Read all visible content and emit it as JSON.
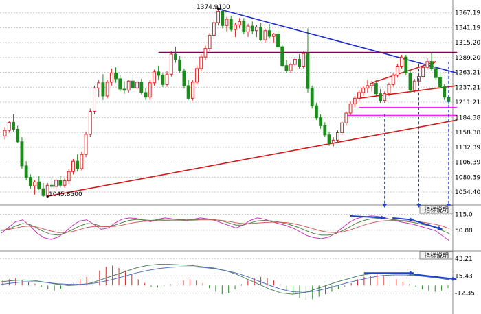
{
  "chart_data": {
    "type": "candlestick",
    "main_panel": {
      "y_axis_labels": [
        "1367.1950",
        "1341.1990",
        "1315.2028",
        "1289.2068",
        "1263.2107",
        "1237.2147",
        "1211.2186",
        "1184.3835",
        "1158.3874",
        "1132.3914",
        "1106.3953",
        "1080.3993",
        "1054.4032"
      ],
      "ylim": [
        1040,
        1380
      ],
      "annotations": [
        {
          "label": "1374.9100",
          "value": 1374.91
        },
        {
          "label": "1045.8500",
          "value": 1045.85
        }
      ],
      "candles": [
        [
          1152,
          1168,
          1146,
          1162
        ],
        [
          1162,
          1178,
          1158,
          1176
        ],
        [
          1176,
          1190,
          1160,
          1164
        ],
        [
          1164,
          1170,
          1140,
          1142
        ],
        [
          1142,
          1150,
          1095,
          1100
        ],
        [
          1100,
          1108,
          1075,
          1080
        ],
        [
          1080,
          1085,
          1060,
          1065
        ],
        [
          1065,
          1075,
          1050,
          1072
        ],
        [
          1072,
          1082,
          1058,
          1060
        ],
        [
          1060,
          1070,
          1046,
          1048
        ],
        [
          1048,
          1070,
          1046,
          1066
        ],
        [
          1066,
          1078,
          1060,
          1064
        ],
        [
          1064,
          1080,
          1055,
          1075
        ],
        [
          1075,
          1082,
          1062,
          1066
        ],
        [
          1066,
          1078,
          1062,
          1074
        ],
        [
          1074,
          1095,
          1068,
          1090
        ],
        [
          1090,
          1112,
          1085,
          1108
        ],
        [
          1108,
          1120,
          1090,
          1095
        ],
        [
          1095,
          1125,
          1092,
          1120
        ],
        [
          1120,
          1160,
          1115,
          1155
        ],
        [
          1155,
          1200,
          1150,
          1195
        ],
        [
          1195,
          1240,
          1190,
          1236
        ],
        [
          1236,
          1250,
          1220,
          1245
        ],
        [
          1245,
          1260,
          1215,
          1222
        ],
        [
          1222,
          1250,
          1218,
          1246
        ],
        [
          1246,
          1270,
          1240,
          1262
        ],
        [
          1262,
          1272,
          1245,
          1252
        ],
        [
          1252,
          1258,
          1230,
          1234
        ],
        [
          1234,
          1248,
          1226,
          1232
        ],
        [
          1232,
          1250,
          1228,
          1248
        ],
        [
          1248,
          1258,
          1232,
          1236
        ],
        [
          1236,
          1250,
          1232,
          1246
        ],
        [
          1246,
          1252,
          1225,
          1228
        ],
        [
          1228,
          1236,
          1215,
          1220
        ],
        [
          1220,
          1250,
          1215,
          1245
        ],
        [
          1245,
          1268,
          1240,
          1264
        ],
        [
          1264,
          1275,
          1250,
          1258
        ],
        [
          1258,
          1262,
          1238,
          1242
        ],
        [
          1242,
          1265,
          1238,
          1260
        ],
        [
          1260,
          1300,
          1256,
          1295
        ],
        [
          1295,
          1308,
          1280,
          1285
        ],
        [
          1285,
          1292,
          1262,
          1266
        ],
        [
          1266,
          1270,
          1235,
          1240
        ],
        [
          1240,
          1250,
          1215,
          1218
        ],
        [
          1218,
          1250,
          1214,
          1246
        ],
        [
          1246,
          1275,
          1242,
          1270
        ],
        [
          1270,
          1295,
          1265,
          1290
        ],
        [
          1290,
          1310,
          1285,
          1305
        ],
        [
          1305,
          1332,
          1300,
          1328
        ],
        [
          1328,
          1355,
          1322,
          1350
        ],
        [
          1350,
          1375,
          1345,
          1370
        ],
        [
          1370,
          1374,
          1340,
          1345
        ],
        [
          1345,
          1360,
          1335,
          1356
        ],
        [
          1356,
          1362,
          1335,
          1338
        ],
        [
          1338,
          1350,
          1325,
          1346
        ],
        [
          1346,
          1358,
          1340,
          1352
        ],
        [
          1352,
          1358,
          1330,
          1334
        ],
        [
          1334,
          1348,
          1325,
          1344
        ],
        [
          1344,
          1352,
          1330,
          1336
        ],
        [
          1336,
          1346,
          1325,
          1342
        ],
        [
          1342,
          1350,
          1318,
          1320
        ],
        [
          1320,
          1340,
          1315,
          1336
        ],
        [
          1336,
          1348,
          1322,
          1326
        ],
        [
          1326,
          1332,
          1315,
          1330
        ],
        [
          1330,
          1336,
          1305,
          1308
        ],
        [
          1308,
          1312,
          1272,
          1275
        ],
        [
          1275,
          1285,
          1262,
          1266
        ],
        [
          1266,
          1280,
          1262,
          1277
        ],
        [
          1277,
          1290,
          1272,
          1286
        ],
        [
          1286,
          1295,
          1270,
          1274
        ],
        [
          1274,
          1300,
          1270,
          1296
        ],
        [
          1296,
          1340,
          1228,
          1235
        ],
        [
          1235,
          1240,
          1200,
          1205
        ],
        [
          1205,
          1210,
          1180,
          1184
        ],
        [
          1184,
          1190,
          1165,
          1170
        ],
        [
          1170,
          1176,
          1150,
          1154
        ],
        [
          1154,
          1160,
          1135,
          1140
        ],
        [
          1140,
          1150,
          1134,
          1145
        ],
        [
          1145,
          1162,
          1140,
          1158
        ],
        [
          1158,
          1178,
          1154,
          1175
        ],
        [
          1175,
          1195,
          1170,
          1192
        ],
        [
          1192,
          1212,
          1188,
          1208
        ],
        [
          1208,
          1222,
          1202,
          1218
        ],
        [
          1218,
          1232,
          1212,
          1228
        ],
        [
          1228,
          1240,
          1222,
          1236
        ],
        [
          1236,
          1250,
          1228,
          1240
        ],
        [
          1240,
          1248,
          1230,
          1244
        ],
        [
          1244,
          1250,
          1222,
          1226
        ],
        [
          1226,
          1234,
          1210,
          1214
        ],
        [
          1214,
          1230,
          1210,
          1226
        ],
        [
          1226,
          1245,
          1222,
          1242
        ],
        [
          1242,
          1262,
          1238,
          1258
        ],
        [
          1258,
          1278,
          1254,
          1274
        ],
        [
          1274,
          1294,
          1270,
          1290
        ],
        [
          1290,
          1294,
          1258,
          1262
        ],
        [
          1262,
          1268,
          1228,
          1232
        ],
        [
          1232,
          1252,
          1228,
          1248
        ],
        [
          1248,
          1262,
          1240,
          1256
        ],
        [
          1256,
          1276,
          1252,
          1272
        ],
        [
          1272,
          1288,
          1268,
          1282
        ],
        [
          1282,
          1298,
          1266,
          1270
        ],
        [
          1270,
          1274,
          1250,
          1254
        ],
        [
          1254,
          1262,
          1235,
          1238
        ],
        [
          1238,
          1242,
          1215,
          1220
        ],
        [
          1220,
          1224,
          1208,
          1212
        ]
      ],
      "lines": [
        {
          "color": "#1c2bd0",
          "from": [
            50,
            1374
          ],
          "to": [
            106,
            1262
          ]
        },
        {
          "color": "#d41818",
          "from": [
            10,
            1047
          ],
          "to": [
            106,
            1180
          ]
        },
        {
          "color": "#800060",
          "from": [
            36,
            1298
          ],
          "to": [
            106,
            1298
          ]
        },
        {
          "color": "#d41818",
          "from": [
            83,
            1218
          ],
          "to": [
            106,
            1240
          ]
        },
        {
          "color": "#d41818",
          "from": [
            86,
            1245
          ],
          "to": [
            101,
            1282
          ]
        },
        {
          "color": "#ff20ff",
          "from": [
            83,
            1202
          ],
          "to": [
            106,
            1202
          ]
        },
        {
          "color": "#ff20ff",
          "from": [
            80,
            1188
          ],
          "to": [
            106,
            1188
          ]
        }
      ],
      "drops": [
        {
          "x": 89,
          "top_value": 1190
        },
        {
          "x": 97,
          "top_value": 1278
        },
        {
          "x": 104,
          "top_value": 1282
        }
      ]
    },
    "osc1": {
      "tag": "指标说明",
      "y_axis_labels": [
        "115.0",
        "50.88"
      ],
      "ylim": [
        -20,
        135
      ],
      "series": [
        {
          "color": "#c830c0",
          "values": [
            40,
            62,
            85,
            92,
            70,
            40,
            22,
            15,
            25,
            45,
            70,
            88,
            92,
            75,
            55,
            60,
            80,
            95,
            100,
            98,
            90,
            85,
            95,
            100,
            96,
            92,
            88,
            95,
            100,
            96,
            90,
            80,
            70,
            60,
            72,
            90,
            100,
            95,
            85,
            78,
            70,
            60,
            45,
            30,
            22,
            18,
            24,
            40,
            62,
            84,
            98,
            104,
            108,
            106,
            100,
            92,
            85,
            80,
            74,
            66,
            58,
            50,
            30,
            10
          ]
        },
        {
          "color": "#508040",
          "values": [
            50,
            56,
            68,
            78,
            74,
            60,
            45,
            35,
            32,
            40,
            54,
            68,
            78,
            76,
            68,
            66,
            72,
            82,
            90,
            94,
            92,
            90,
            92,
            95,
            95,
            94,
            92,
            93,
            95,
            95,
            93,
            88,
            80,
            72,
            72,
            80,
            88,
            90,
            88,
            84,
            78,
            70,
            60,
            48,
            38,
            32,
            32,
            38,
            50,
            65,
            80,
            90,
            96,
            98,
            97,
            94,
            90,
            86,
            82,
            76,
            70,
            62,
            50,
            38
          ]
        },
        {
          "color": "#d06060",
          "values": [
            52,
            54,
            60,
            66,
            68,
            64,
            56,
            48,
            42,
            42,
            46,
            54,
            62,
            66,
            66,
            65,
            67,
            72,
            78,
            83,
            86,
            88,
            89,
            90,
            91,
            91,
            91,
            91,
            92,
            92,
            92,
            90,
            86,
            81,
            78,
            78,
            80,
            82,
            83,
            83,
            82,
            78,
            72,
            64,
            56,
            48,
            43,
            42,
            45,
            52,
            62,
            72,
            80,
            86,
            89,
            90,
            90,
            89,
            87,
            84,
            80,
            75,
            68,
            58
          ]
        }
      ],
      "arrows": [
        {
          "from": [
            49,
            108
          ],
          "to": [
            54,
            100
          ]
        },
        {
          "from": [
            55,
            100
          ],
          "to": [
            58,
            92
          ]
        },
        {
          "from": [
            58,
            90
          ],
          "to": [
            62,
            55
          ]
        }
      ]
    },
    "osc2": {
      "tag": "指标说明",
      "y_axis_labels": [
        "43.21",
        "15.43",
        "-12.35"
      ],
      "ylim": [
        -26,
        49
      ],
      "histogram": [
        8,
        10,
        12,
        9,
        6,
        3,
        -2,
        -6,
        -8,
        -5,
        2,
        6,
        10,
        14,
        18,
        24,
        30,
        32,
        28,
        24,
        18,
        10,
        4,
        -2,
        -3,
        -1,
        2,
        6,
        8,
        10,
        8,
        4,
        -4,
        -10,
        -14,
        -12,
        -6,
        2,
        8,
        12,
        14,
        12,
        8,
        2,
        -8,
        -14,
        -20,
        -24,
        -22,
        -18,
        -14,
        -10,
        -6,
        -2,
        4,
        10,
        14,
        16,
        18,
        16,
        14,
        10,
        6,
        2,
        -2,
        -6,
        -8,
        -10,
        -8,
        -4
      ],
      "series": [
        {
          "color": "#508060",
          "values": [
            6,
            8,
            9,
            8,
            5,
            2,
            0,
            1,
            4,
            10,
            16,
            22,
            28,
            32,
            34,
            34,
            33,
            32,
            30,
            28,
            24,
            18,
            10,
            2,
            -6,
            -12,
            -14,
            -12,
            -6,
            0,
            6,
            11,
            16,
            19,
            20,
            20,
            19,
            17,
            15,
            12,
            9
          ]
        },
        {
          "color": "#5070c0",
          "values": [
            2,
            4,
            6,
            6,
            5,
            3,
            2,
            2,
            3,
            6,
            10,
            15,
            20,
            24,
            27,
            29,
            30,
            30,
            29,
            27,
            24,
            20,
            14,
            7,
            0,
            -6,
            -10,
            -11,
            -9,
            -5,
            0,
            5,
            9,
            13,
            16,
            17,
            17,
            16,
            14,
            12,
            10
          ]
        }
      ],
      "arrows": [
        {
          "from": [
            51,
            20
          ],
          "to": [
            58,
            20
          ]
        },
        {
          "from": [
            58,
            18
          ],
          "to": [
            64,
            10
          ]
        }
      ]
    },
    "colors": {
      "up": "#e02020",
      "down": "#1c8a1c",
      "grid": "#c8c8c8",
      "resistance_line": "#1c2bd0",
      "support_line": "#d41818",
      "arrow_blue": "#2040d0"
    }
  }
}
